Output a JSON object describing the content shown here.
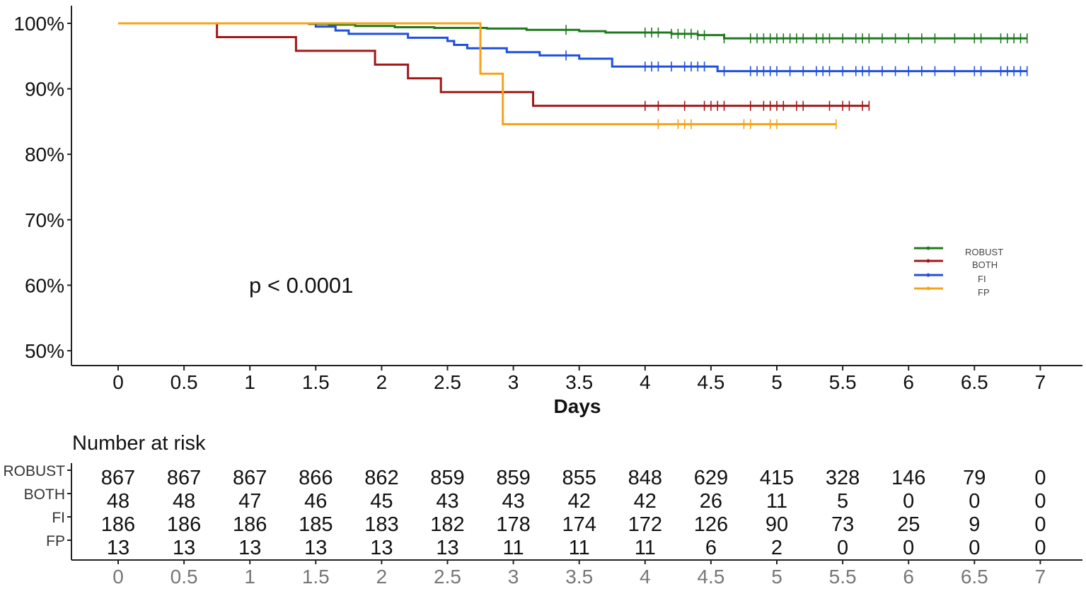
{
  "chart_data": {
    "type": "line",
    "subtype": "kaplan-meier",
    "xlabel": "Days",
    "ylabel": "",
    "xlim": [
      -0.3,
      7.3
    ],
    "ylim": [
      45,
      102
    ],
    "x_ticks": [
      "0",
      "0.5",
      "1",
      "1.5",
      "2",
      "2.5",
      "3",
      "3.5",
      "4",
      "4.5",
      "5",
      "5.5",
      "6",
      "6.5",
      "7"
    ],
    "y_ticks": [
      "100%",
      "90%",
      "80%",
      "70%",
      "60%",
      "50%"
    ],
    "y_tick_values": [
      100,
      90,
      80,
      70,
      60,
      50
    ],
    "annotation": "p < 0.0001",
    "legend_position": "right",
    "series": [
      {
        "name": "ROBUST",
        "color": "#1e7a1e",
        "steps": [
          [
            0,
            100
          ],
          [
            1.45,
            99.9
          ],
          [
            1.6,
            99.8
          ],
          [
            1.8,
            99.6
          ],
          [
            2.1,
            99.4
          ],
          [
            2.4,
            99.3
          ],
          [
            2.8,
            99.2
          ],
          [
            3.1,
            99.0
          ],
          [
            3.5,
            98.8
          ],
          [
            3.7,
            98.6
          ],
          [
            4.2,
            98.4
          ],
          [
            4.4,
            98.2
          ],
          [
            4.6,
            97.7
          ],
          [
            6.9,
            97.7
          ]
        ],
        "censor_times": [
          3.4,
          4.0,
          4.05,
          4.1,
          4.2,
          4.25,
          4.3,
          4.35,
          4.4,
          4.45,
          4.6,
          4.8,
          4.85,
          4.9,
          4.95,
          5.0,
          5.05,
          5.1,
          5.15,
          5.2,
          5.3,
          5.35,
          5.4,
          5.5,
          5.6,
          5.65,
          5.7,
          5.8,
          5.9,
          6.0,
          6.1,
          6.2,
          6.35,
          6.5,
          6.55,
          6.7,
          6.75,
          6.8,
          6.85,
          6.9
        ]
      },
      {
        "name": "BOTH",
        "color": "#a01818",
        "steps": [
          [
            0,
            100
          ],
          [
            0.75,
            97.9
          ],
          [
            1.35,
            95.8
          ],
          [
            1.95,
            93.7
          ],
          [
            2.2,
            91.6
          ],
          [
            2.45,
            89.5
          ],
          [
            3.15,
            87.4
          ],
          [
            5.7,
            87.4
          ]
        ],
        "censor_times": [
          4.0,
          4.1,
          4.3,
          4.45,
          4.5,
          4.55,
          4.6,
          4.8,
          4.9,
          4.95,
          5.0,
          5.05,
          5.15,
          5.2,
          5.4,
          5.5,
          5.55,
          5.65,
          5.7
        ]
      },
      {
        "name": "FI",
        "color": "#1f4fe0",
        "steps": [
          [
            0,
            100
          ],
          [
            1.5,
            99.5
          ],
          [
            1.65,
            98.9
          ],
          [
            1.75,
            98.4
          ],
          [
            2.2,
            97.8
          ],
          [
            2.5,
            97.3
          ],
          [
            2.55,
            96.7
          ],
          [
            2.65,
            96.2
          ],
          [
            2.95,
            95.6
          ],
          [
            3.2,
            95.1
          ],
          [
            3.5,
            94.6
          ],
          [
            3.75,
            93.4
          ],
          [
            4.55,
            92.7
          ],
          [
            6.9,
            92.7
          ]
        ],
        "censor_times": [
          3.4,
          4.0,
          4.05,
          4.1,
          4.2,
          4.3,
          4.35,
          4.4,
          4.45,
          4.6,
          4.8,
          4.85,
          4.9,
          4.95,
          5.0,
          5.1,
          5.2,
          5.3,
          5.35,
          5.4,
          5.5,
          5.6,
          5.65,
          5.7,
          5.8,
          5.9,
          6.0,
          6.1,
          6.2,
          6.35,
          6.5,
          6.55,
          6.7,
          6.75,
          6.8,
          6.85,
          6.9
        ]
      },
      {
        "name": "FP",
        "color": "#f5a31a",
        "steps": [
          [
            0,
            100
          ],
          [
            2.75,
            92.3
          ],
          [
            2.92,
            84.6
          ],
          [
            5.45,
            84.6
          ]
        ],
        "censor_times": [
          4.1,
          4.25,
          4.3,
          4.35,
          4.75,
          4.8,
          4.95,
          5.0,
          5.45
        ]
      }
    ],
    "risk_table": {
      "title": "Number at risk",
      "times": [
        "0",
        "0.5",
        "1",
        "1.5",
        "2",
        "2.5",
        "3",
        "3.5",
        "4",
        "4.5",
        "5",
        "5.5",
        "6",
        "6.5",
        "7"
      ],
      "rows": [
        {
          "group": "ROBUST",
          "values": [
            "867",
            "867",
            "867",
            "866",
            "862",
            "859",
            "859",
            "855",
            "848",
            "629",
            "415",
            "328",
            "146",
            "79",
            "0"
          ]
        },
        {
          "group": "BOTH",
          "values": [
            "48",
            "48",
            "47",
            "46",
            "45",
            "43",
            "43",
            "42",
            "42",
            "26",
            "11",
            "5",
            "0",
            "0",
            "0"
          ]
        },
        {
          "group": "FI",
          "values": [
            "186",
            "186",
            "186",
            "185",
            "183",
            "182",
            "178",
            "174",
            "172",
            "126",
            "90",
            "73",
            "25",
            "9",
            "0"
          ]
        },
        {
          "group": "FP",
          "values": [
            "13",
            "13",
            "13",
            "13",
            "13",
            "13",
            "11",
            "11",
            "11",
            "6",
            "2",
            "0",
            "0",
            "0",
            "0"
          ]
        }
      ]
    }
  }
}
